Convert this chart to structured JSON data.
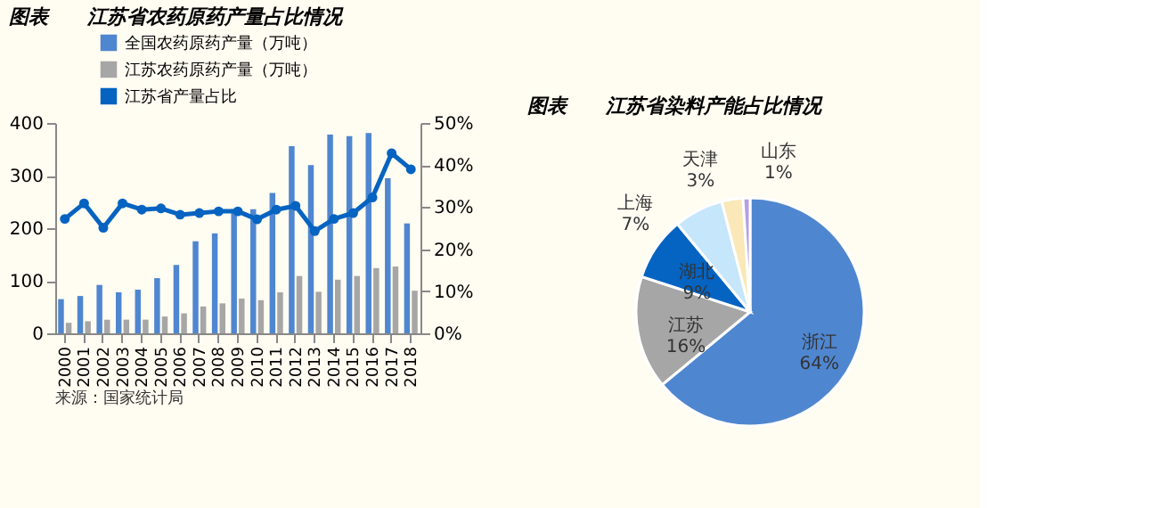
{
  "chart_data": [
    {
      "type": "bar",
      "title": "图表　　江苏省农药原药产量占比情况",
      "categories": [
        "2000",
        "2001",
        "2002",
        "2003",
        "2004",
        "2005",
        "2006",
        "2007",
        "2008",
        "2009",
        "2010",
        "2011",
        "2012",
        "2013",
        "2014",
        "2015",
        "2016",
        "2017",
        "2018"
      ],
      "series": [
        {
          "name": "全国农药原药产量（万吨）",
          "color": "#4f86d0",
          "values": [
            65,
            71,
            92,
            78,
            83,
            105,
            130,
            175,
            190,
            236,
            236,
            267,
            356,
            320,
            378,
            375,
            381,
            295,
            209
          ]
        },
        {
          "name": "江苏农药原药产量（万吨）",
          "color": "#a6a6a6",
          "values": [
            20,
            23,
            26,
            26,
            26,
            32,
            38,
            51,
            57,
            66,
            63,
            78,
            109,
            79,
            102,
            109,
            124,
            127,
            81
          ]
        },
        {
          "name": "江苏省产量占比",
          "color": "#0563c1",
          "type": "line",
          "axis": "y2",
          "values": [
            27.2,
            30.9,
            25.1,
            30.9,
            29.4,
            29.7,
            28.2,
            28.6,
            29.0,
            29.0,
            27.1,
            29.4,
            30.3,
            24.3,
            27.2,
            28.6,
            32.3,
            42.8,
            39.0
          ]
        }
      ],
      "ylim": [
        0,
        400
      ],
      "yticks": [
        0,
        100,
        200,
        300,
        400
      ],
      "y2lim": [
        0,
        50
      ],
      "y2ticks": [
        {
          "value": 0,
          "label": "0%"
        },
        {
          "value": 10,
          "label": "10%"
        },
        {
          "value": 20,
          "label": "20%"
        },
        {
          "value": 30,
          "label": "30%"
        },
        {
          "value": 40,
          "label": "40%"
        },
        {
          "value": 50,
          "label": "50%"
        }
      ],
      "marker": "circle",
      "legend": "top",
      "grid": false,
      "annotations": [
        "来源：国家统计局"
      ]
    },
    {
      "type": "pie",
      "title": "图表　　江苏省染料产能占比情况",
      "categories": [
        "浙江",
        "江苏",
        "湖北",
        "上海",
        "天津",
        "山东"
      ],
      "values": [
        64,
        16,
        9,
        7,
        3,
        1
      ],
      "colors": [
        "#4f86d0",
        "#a6a6a6",
        "#0563c1",
        "#c5e6fb",
        "#fbe8b8",
        "#b4a0e0"
      ],
      "value_labels": [
        "64%",
        "16%",
        "9%",
        "7%",
        "3%",
        "1%"
      ]
    }
  ]
}
